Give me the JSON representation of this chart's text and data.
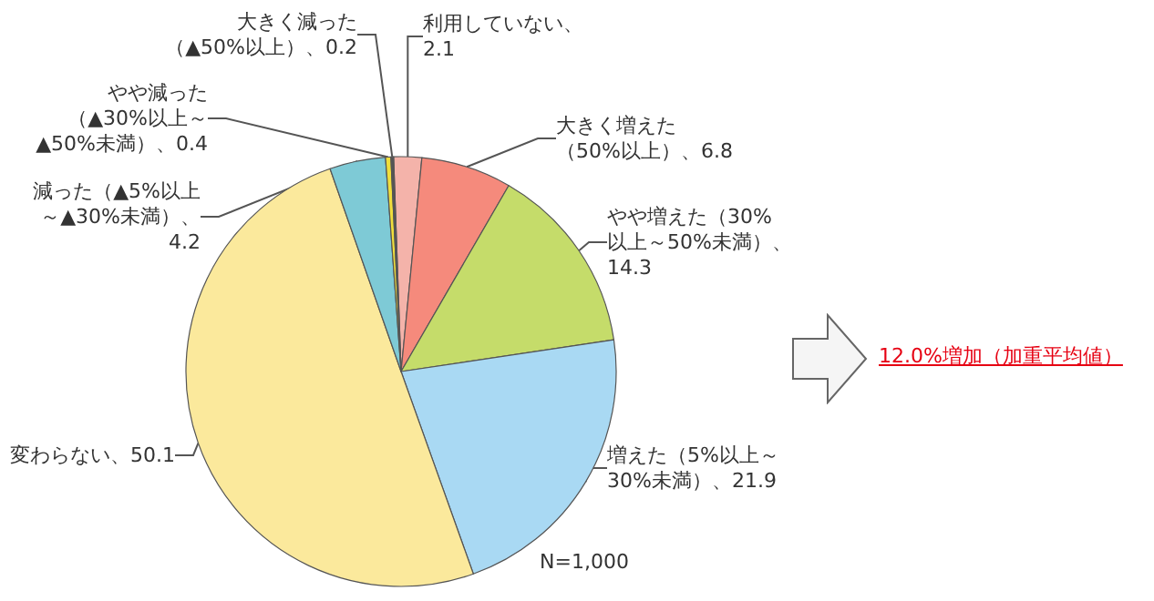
{
  "chart_data": {
    "type": "pie",
    "categories": [
      "利用していない",
      "大きく増えた（50%以上）",
      "やや増えた（30%以上～50%未満）",
      "増えた（5%以上～30%未満）",
      "変わらない",
      "減った（▲5%以上～▲30%未満）",
      "やや減った（▲30%以上～▲50%未満）",
      "大きく減った（▲50%以上）"
    ],
    "values": [
      2.1,
      6.8,
      14.3,
      21.9,
      50.1,
      4.2,
      0.4,
      0.2
    ],
    "value_labels": [
      "、2.1",
      "、6.8",
      "、14.3",
      "、21.9",
      "、50.1",
      "、4.2",
      "、0.4",
      "、0.2"
    ],
    "colors": [
      "#f4b3aa",
      "#f58a7c",
      "#c5dc6a",
      "#a9d9f3",
      "#fbe99c",
      "#7ecad6",
      "#f0de3c",
      "#555555"
    ],
    "annotations": [
      "N=1,000",
      "12.0%増加（加重平均値）"
    ]
  }
}
